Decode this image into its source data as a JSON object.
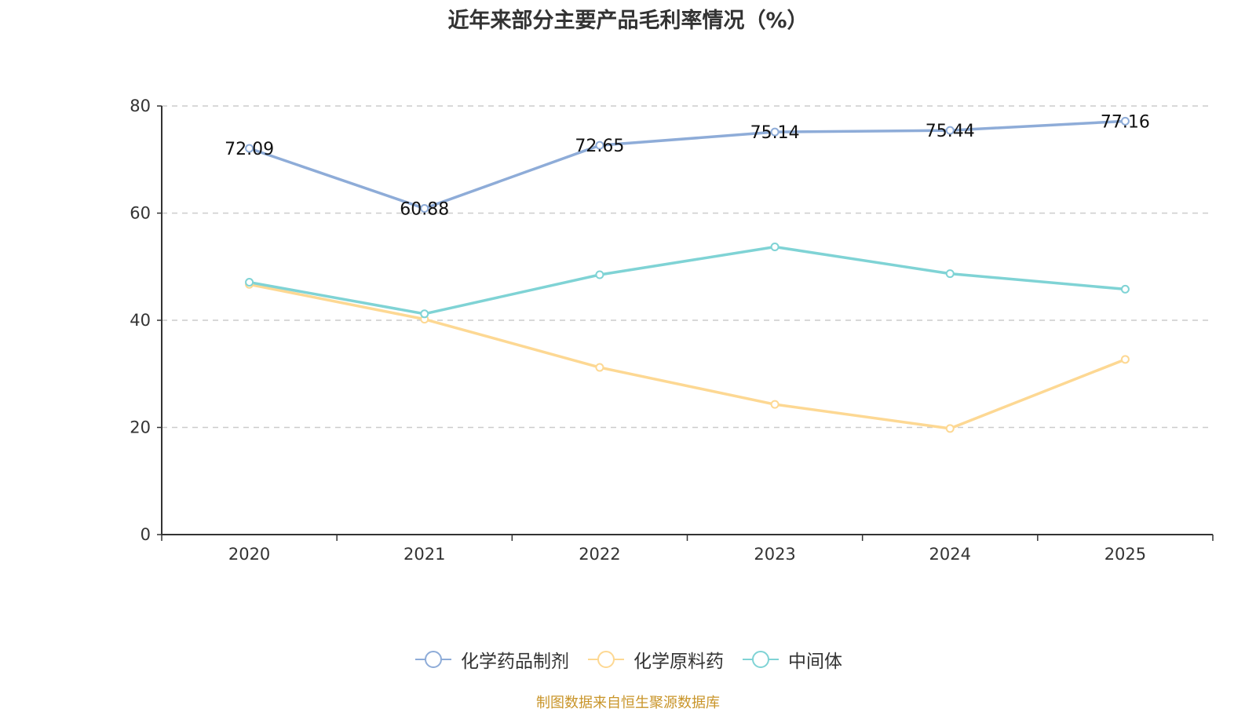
{
  "title": "近年来部分主要产品毛利率情况（%）",
  "footer": "制图数据来自恒生聚源数据库",
  "chart_data": {
    "type": "line",
    "title": "近年来部分主要产品毛利率情况（%）",
    "xlabel": "",
    "ylabel": "",
    "categories": [
      "2020",
      "2021",
      "2022",
      "2023",
      "2024",
      "2025"
    ],
    "ylim": [
      0,
      80
    ],
    "yticks": [
      0,
      20,
      40,
      60,
      80
    ],
    "grid": true,
    "legend_position": "bottom",
    "series": [
      {
        "name": "化学药品制剂",
        "color": "#8eacd8",
        "values": [
          72.09,
          60.88,
          72.65,
          75.14,
          75.44,
          77.16
        ],
        "show_labels": true
      },
      {
        "name": "化学原料药",
        "color": "#fdd893",
        "values": [
          46.7,
          40.2,
          31.2,
          24.3,
          19.8,
          32.7
        ],
        "show_labels": false
      },
      {
        "name": "中间体",
        "color": "#7fd3d5",
        "values": [
          47.1,
          41.2,
          48.5,
          53.7,
          48.7,
          45.8
        ],
        "show_labels": false
      }
    ]
  }
}
